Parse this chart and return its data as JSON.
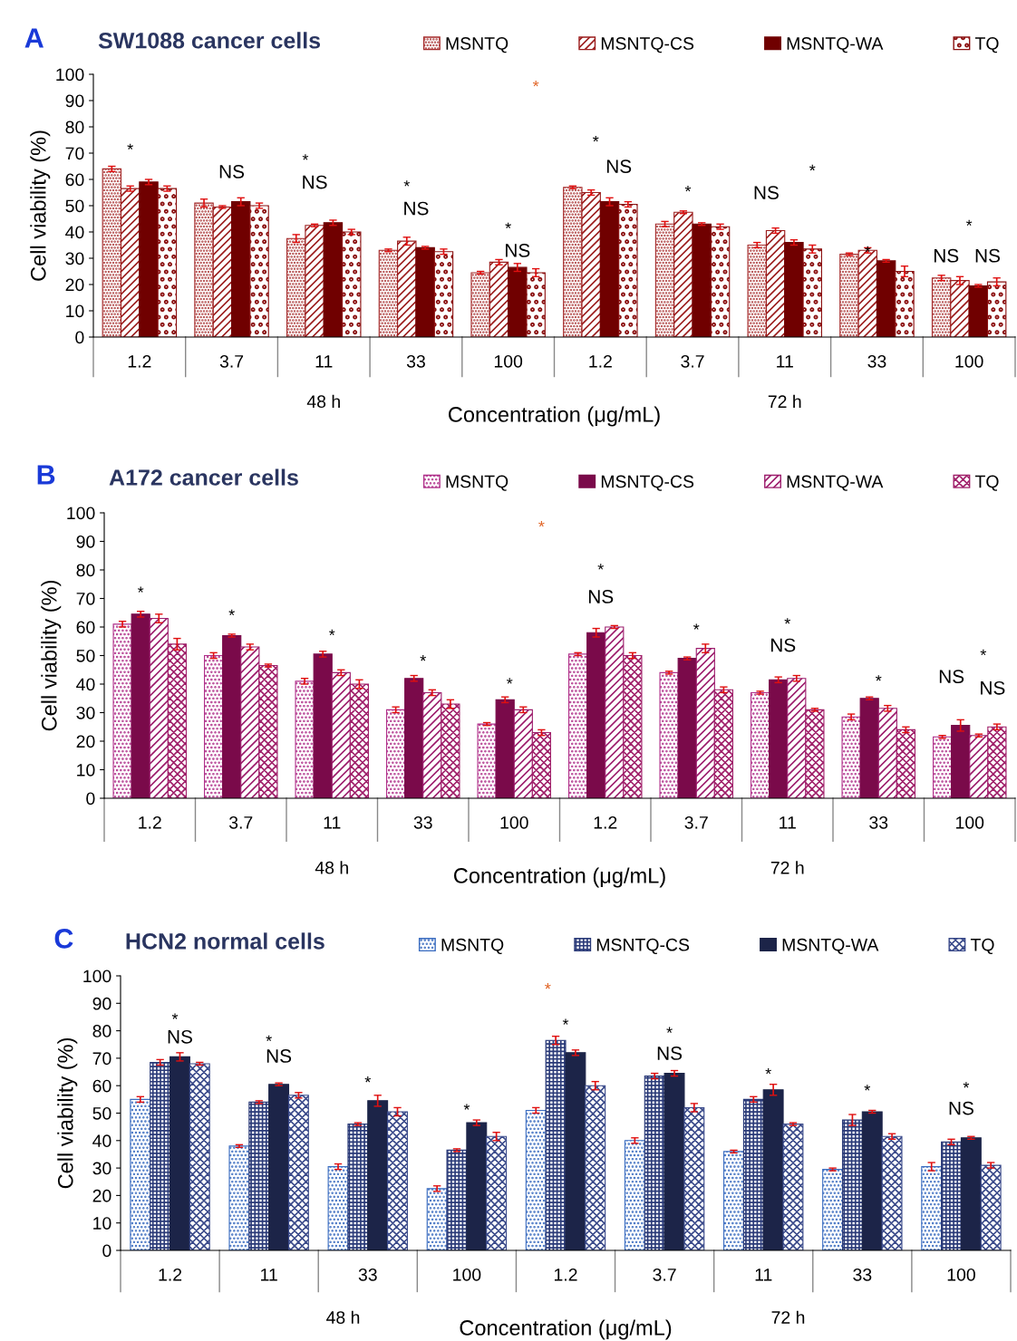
{
  "chart_data": [
    {
      "type": "bar",
      "title": "SW1088 cancer cells",
      "xlabel": "Concentration (μg/mL)",
      "ylabel": "Cell viability (%)",
      "categories": [
        "1.2",
        "3.7",
        "11",
        "33",
        "100",
        "1.2",
        "3.7",
        "11",
        "33",
        "100"
      ],
      "series": [
        {
          "name": "MSNTQ",
          "color": "#a52a2a",
          "values": [
            64,
            51,
            37.5,
            33,
            24.5,
            57,
            43,
            35,
            31.5,
            22.5
          ],
          "errors": [
            1,
            1.5,
            1.5,
            0.5,
            0.5,
            0.5,
            1,
            1,
            0.5,
            1
          ]
        },
        {
          "name": "MSNTQ-CS",
          "color": "#9b1c1c",
          "values": [
            56.5,
            49.5,
            42.5,
            36.5,
            28.5,
            55,
            47.5,
            40.5,
            33,
            21.5
          ],
          "errors": [
            1,
            0.5,
            0.5,
            1.5,
            1,
            1,
            0.5,
            1,
            1,
            1.5
          ]
        },
        {
          "name": "MSNTQ-WA",
          "color": "#700000",
          "values": [
            59,
            51.5,
            43.5,
            34,
            26.5,
            51.5,
            43,
            36,
            29,
            19.5
          ],
          "errors": [
            1,
            1.5,
            1,
            0.5,
            1.5,
            1.5,
            0.5,
            1,
            0.5,
            0.5
          ]
        },
        {
          "name": "TQ",
          "color": "#8b1010",
          "values": [
            56.5,
            50,
            40,
            32.5,
            24.5,
            50.5,
            42,
            33.5,
            25,
            21
          ],
          "errors": [
            1,
            1,
            1,
            1,
            1.5,
            1,
            1,
            1.5,
            2,
            1.5
          ]
        }
      ],
      "ylim": [
        0,
        100
      ],
      "yticks": [
        0,
        10,
        20,
        30,
        40,
        50,
        60,
        70,
        80,
        90,
        100
      ],
      "grid": false,
      "legend": "top",
      "annotations": [
        "A",
        "*",
        "48 h",
        "72 h",
        "*",
        "NS",
        "*",
        "NS",
        "*",
        "NS",
        "*",
        "NS",
        "*",
        "NS",
        "*",
        "*",
        "NS",
        "*",
        "*",
        "NS",
        "NS"
      ]
    },
    {
      "type": "bar",
      "title": "A172 cancer cells",
      "xlabel": "Concentration (μg/mL)",
      "ylabel": "Cell viability (%)",
      "categories": [
        "1.2",
        "3.7",
        "11",
        "33",
        "100",
        "1.2",
        "3.7",
        "11",
        "33",
        "100"
      ],
      "series": [
        {
          "name": "MSNTQ",
          "color": "#b0308a",
          "values": [
            61,
            50,
            41,
            31,
            26,
            50.5,
            44,
            37,
            28.5,
            21.5
          ],
          "errors": [
            1,
            1,
            1,
            1,
            0.5,
            0.5,
            0.5,
            0.5,
            1,
            0.5
          ]
        },
        {
          "name": "MSNTQ-CS",
          "color": "#7a0a4a",
          "values": [
            64.5,
            57,
            50.5,
            42,
            34.5,
            58,
            49,
            41.5,
            35,
            25.5
          ],
          "errors": [
            1,
            0.5,
            1,
            1,
            1,
            1.5,
            0.5,
            1,
            0.5,
            2
          ]
        },
        {
          "name": "MSNTQ-WA",
          "color": "#9c1c6c",
          "values": [
            63,
            53,
            44,
            37,
            31,
            60,
            52.5,
            42,
            31.5,
            22
          ],
          "errors": [
            1.5,
            1,
            1,
            1,
            1,
            0.5,
            1.5,
            1,
            1,
            0.5
          ]
        },
        {
          "name": "TQ",
          "color": "#a0206a",
          "values": [
            54,
            46.5,
            40,
            33,
            23,
            50,
            38,
            31,
            24,
            25
          ],
          "errors": [
            2,
            0.5,
            1.5,
            1.5,
            1,
            1,
            1,
            0.5,
            1,
            1
          ]
        }
      ],
      "ylim": [
        0,
        100
      ],
      "yticks": [
        0,
        10,
        20,
        30,
        40,
        50,
        60,
        70,
        80,
        90,
        100
      ],
      "grid": false,
      "legend": "top",
      "annotations": [
        "B",
        "*",
        "48 h",
        "72 h",
        "*",
        "*",
        "*",
        "*",
        "*",
        "*",
        "NS",
        "*",
        "*",
        "NS",
        "*",
        "*",
        "NS",
        "NS"
      ]
    },
    {
      "type": "bar",
      "title": "HCN2 normal cells",
      "xlabel": "Concentration (μg/mL)",
      "ylabel": "Cell viability (%)",
      "categories": [
        "1.2",
        "11",
        "33",
        "100",
        "1.2",
        "3.7",
        "11",
        "33",
        "100"
      ],
      "series": [
        {
          "name": "MSNTQ",
          "color": "#3a6cc0",
          "values": [
            55,
            38,
            30.5,
            22.5,
            51,
            40,
            36,
            29.5,
            30.5
          ],
          "errors": [
            1,
            0.5,
            1,
            1,
            1,
            1,
            0.5,
            0.5,
            1.5
          ]
        },
        {
          "name": "MSNTQ-CS",
          "color": "#2a3a78",
          "values": [
            68.5,
            54,
            46,
            36.5,
            76.5,
            63.5,
            55,
            47.5,
            39.5
          ],
          "errors": [
            1,
            0.5,
            0.5,
            0.5,
            1.5,
            1,
            1,
            2,
            1
          ]
        },
        {
          "name": "MSNTQ-WA",
          "color": "#1c2448",
          "values": [
            70.5,
            60.5,
            54.5,
            46.5,
            72,
            64.5,
            58.5,
            50.5,
            41
          ],
          "errors": [
            1.5,
            0.5,
            2,
            1,
            1,
            1,
            2,
            0.5,
            0.5
          ]
        },
        {
          "name": "TQ",
          "color": "#3a4a8a",
          "values": [
            68,
            56.5,
            50.5,
            41.5,
            60,
            52,
            46,
            41.5,
            31
          ],
          "errors": [
            0.5,
            1,
            1.5,
            1.5,
            1.5,
            1.5,
            0.5,
            1,
            1
          ]
        }
      ],
      "ylim": [
        0,
        100
      ],
      "yticks": [
        0,
        10,
        20,
        30,
        40,
        50,
        60,
        70,
        80,
        90,
        100
      ],
      "grid": false,
      "legend": "top",
      "annotations": [
        "C",
        "*",
        "48 h",
        "72 h",
        "*",
        "NS",
        "*",
        "NS",
        "*",
        "*",
        "*",
        "*",
        "NS",
        "*",
        "*",
        "*",
        "NS"
      ]
    }
  ]
}
